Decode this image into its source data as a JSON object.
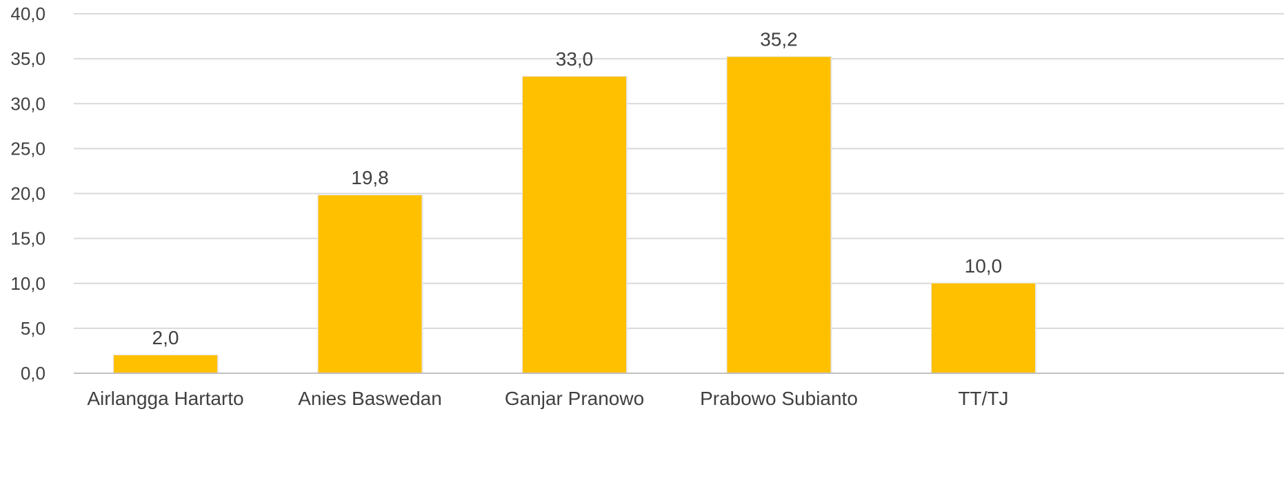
{
  "chart_data": {
    "type": "bar",
    "title": "",
    "xlabel": "",
    "ylabel": "",
    "categories": [
      "Airlangga Hartarto",
      "Anies Baswedan",
      "Ganjar Pranowo",
      "Prabowo Subianto",
      "TT/TJ"
    ],
    "values": [
      2.0,
      19.8,
      33.0,
      35.2,
      10.0
    ],
    "value_labels": [
      "2,0",
      "19,8",
      "33,0",
      "35,2",
      "10,0"
    ],
    "ylim": [
      0,
      40
    ],
    "yticks": [
      0,
      5,
      10,
      15,
      20,
      25,
      30,
      35,
      40
    ],
    "ytick_labels": [
      "0,0",
      "5,0",
      "10,0",
      "15,0",
      "20,0",
      "25,0",
      "30,0",
      "35,0",
      "40,0"
    ],
    "grid": true,
    "legend": "none",
    "bar_color": "#FFC000"
  }
}
